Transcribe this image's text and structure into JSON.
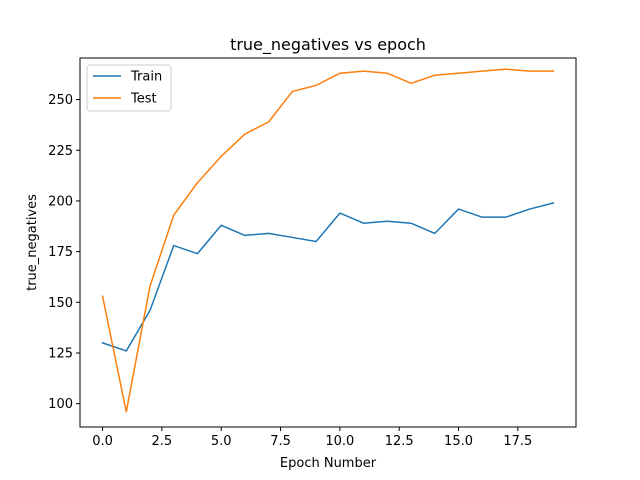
{
  "chart_data": {
    "type": "line",
    "title": "true_negatives vs epoch",
    "xlabel": "Epoch Number",
    "ylabel": "true_negatives",
    "xlim": [
      -0.95,
      19.95
    ],
    "ylim": [
      88.5,
      270.5
    ],
    "xticks": [
      0.0,
      2.5,
      5.0,
      7.5,
      10.0,
      12.5,
      15.0,
      17.5
    ],
    "xtick_labels": [
      "0.0",
      "2.5",
      "5.0",
      "7.5",
      "10.0",
      "12.5",
      "15.0",
      "17.5"
    ],
    "yticks": [
      100,
      125,
      150,
      175,
      200,
      225,
      250
    ],
    "ytick_labels": [
      "100",
      "125",
      "150",
      "175",
      "200",
      "225",
      "250"
    ],
    "grid": false,
    "legend_position": "top-left",
    "x": [
      0,
      1,
      2,
      3,
      4,
      5,
      6,
      7,
      8,
      9,
      10,
      11,
      12,
      13,
      14,
      15,
      16,
      17,
      18,
      19
    ],
    "series": [
      {
        "name": "Train",
        "color": "#1f77b4",
        "values": [
          130,
          126,
          146,
          178,
          174,
          188,
          183,
          184,
          182,
          180,
          194,
          189,
          190,
          189,
          184,
          196,
          192,
          192,
          196,
          199
        ]
      },
      {
        "name": "Test",
        "color": "#ff7f0e",
        "values": [
          153,
          96,
          158,
          193,
          209,
          222,
          233,
          239,
          254,
          257,
          263,
          264,
          263,
          258,
          262,
          263,
          264,
          265,
          264,
          264
        ]
      }
    ]
  }
}
